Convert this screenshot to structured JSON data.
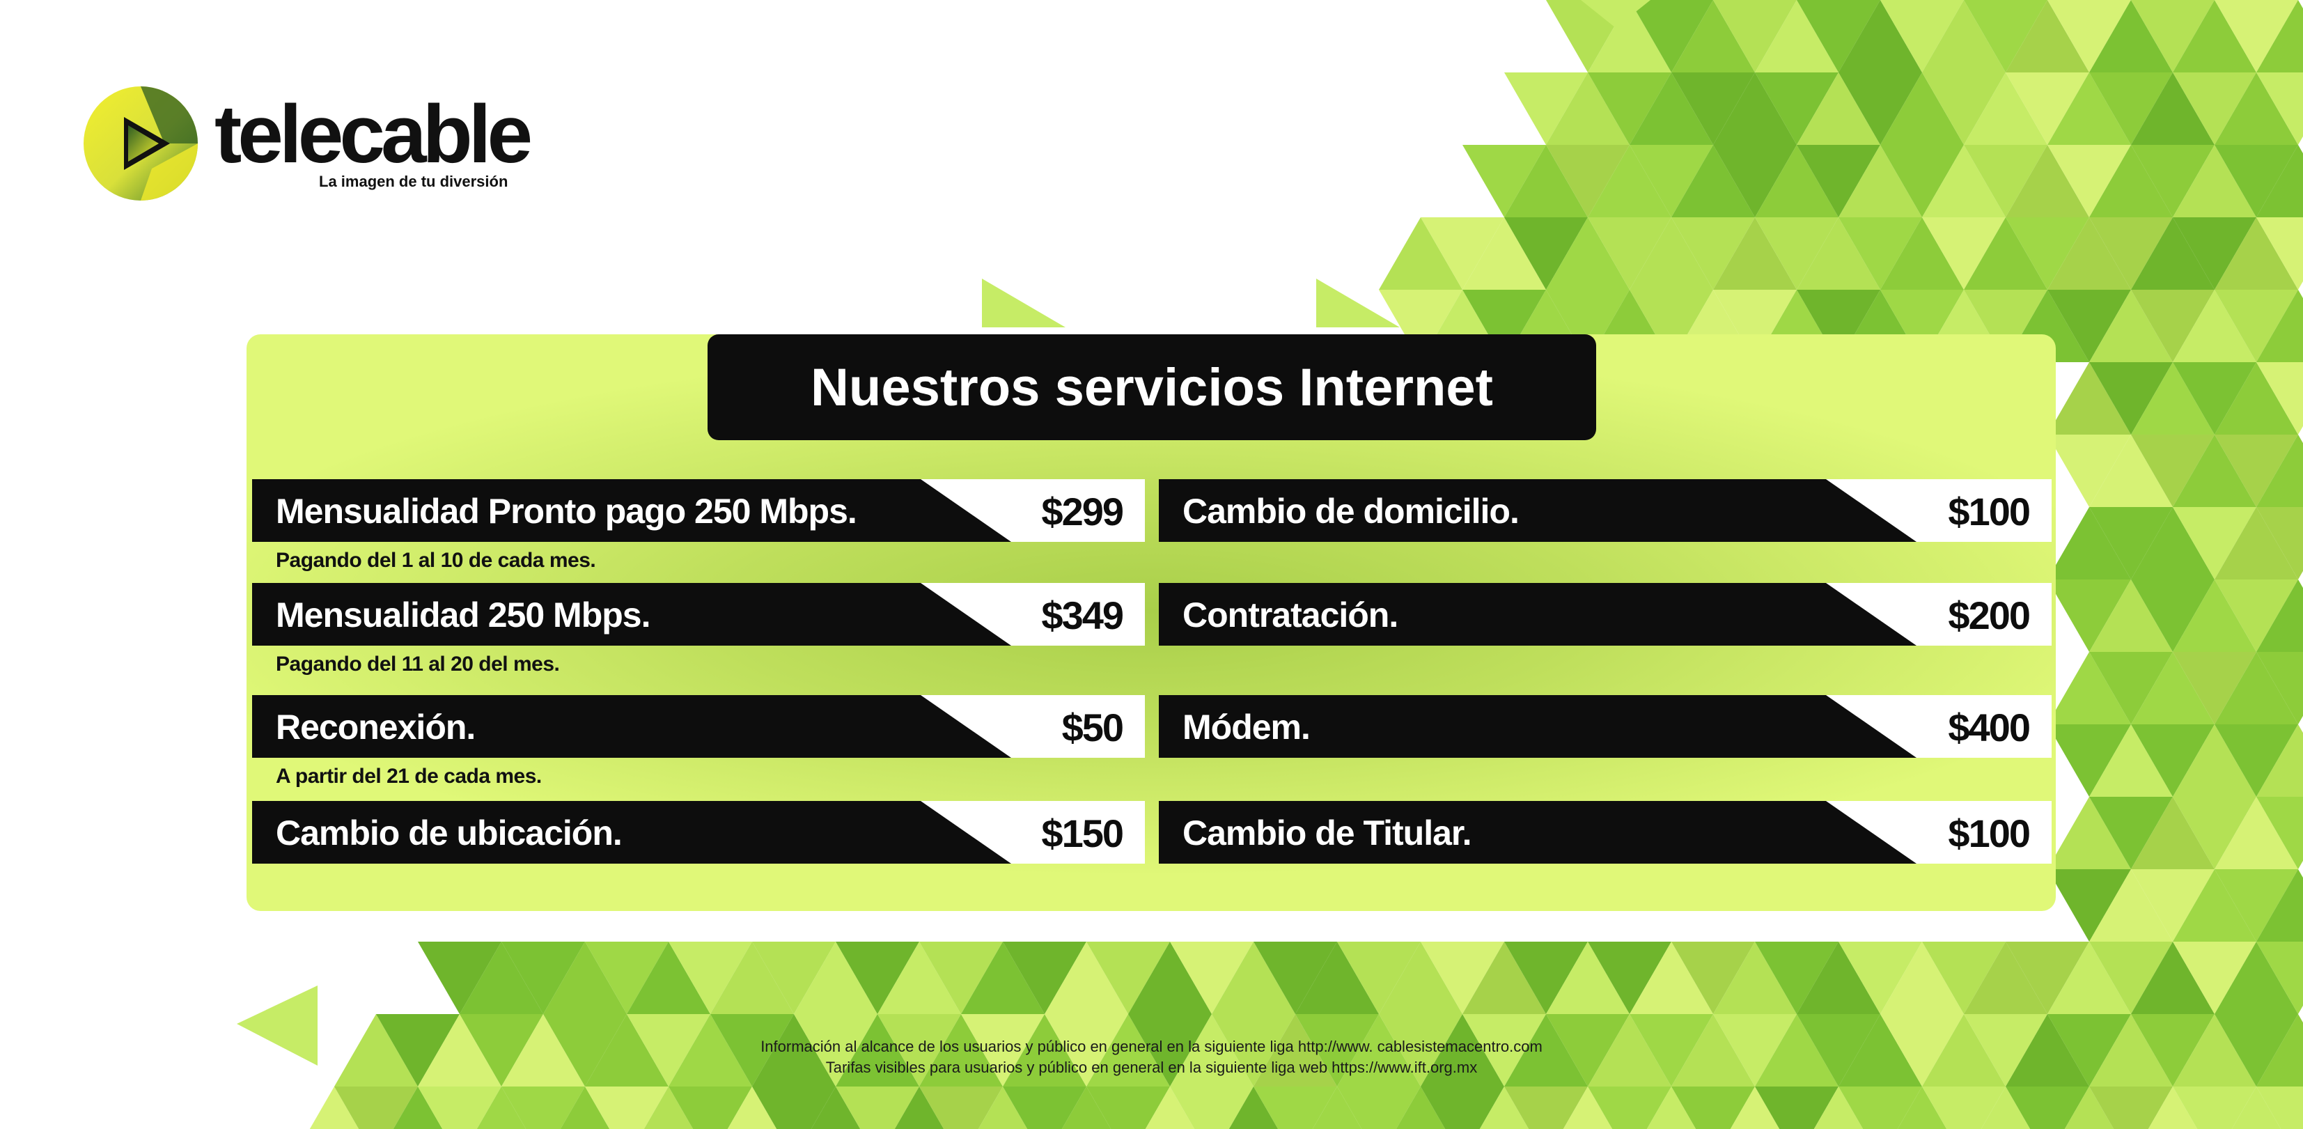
{
  "brand": {
    "name": "telecable",
    "tagline": "La imagen de tu diversión",
    "colors": {
      "yellow": "#e6e627",
      "green": "#3e6e2a",
      "black": "#111111"
    }
  },
  "panel": {
    "title": "Nuestros servicios Internet",
    "left_column": [
      {
        "label": "Mensualidad Pronto pago 250 Mbps.",
        "price": "$299",
        "note": "Pagando del 1 al 10 de cada mes."
      },
      {
        "label": "Mensualidad 250 Mbps.",
        "price": "$349",
        "note": "Pagando del 11 al 20 del mes."
      },
      {
        "label": "Reconexión.",
        "price": "$50",
        "note": "A partir del 21 de cada mes."
      },
      {
        "label": "Cambio de ubicación.",
        "price": "$150",
        "note": ""
      }
    ],
    "right_column": [
      {
        "label": "Cambio de domicilio.",
        "price": "$100"
      },
      {
        "label": "Contratación.",
        "price": "$200"
      },
      {
        "label": "Módem.",
        "price": "$400"
      },
      {
        "label": "Cambio de Titular.",
        "price": "$100"
      }
    ]
  },
  "footer": {
    "line1": "Información al alcance de los usuarios y público en general en la siguiente liga http://www. cablesistemacentro.com",
    "line2": "Tarifas visibles para usuarios y público en general en la siguiente liga web https://www.ift.org.mx"
  },
  "theme": {
    "panel_bg": "#e0f878",
    "bar_color": "#0d0d0d",
    "price_bg": "#ffffff",
    "triangle_palette": [
      "#7cc233",
      "#8dcc3a",
      "#9fd846",
      "#b4e155",
      "#c6ec66",
      "#d6f275",
      "#a6d24a",
      "#6fb52c"
    ]
  }
}
